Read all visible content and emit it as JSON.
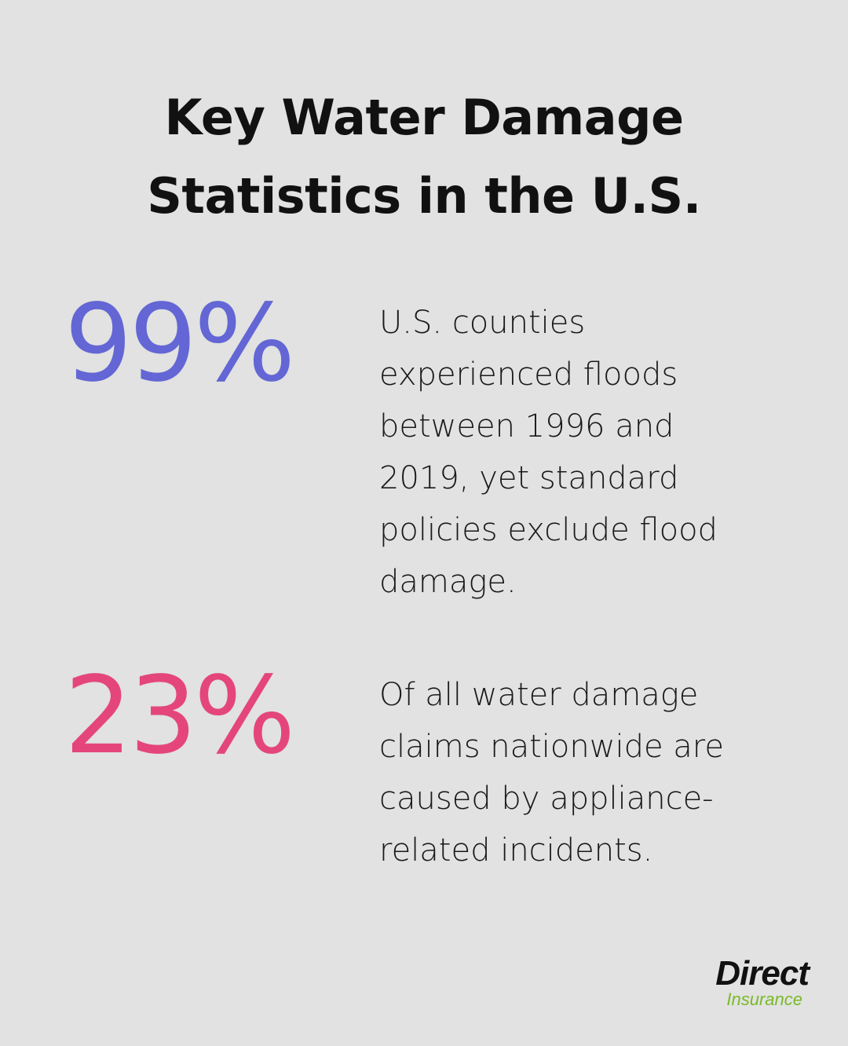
{
  "header": {
    "title": "Key Water Damage Statistics in the U.S."
  },
  "stats": [
    {
      "value": "99%",
      "text": "U.S. counties experienced floods between 1996 and 2019, yet standard policies exclude flood damage.",
      "color": "#6366d4"
    },
    {
      "value": "23%",
      "text": "Of all water damage claims nationwide are caused by appliance-related incidents.",
      "color": "#e4467b"
    }
  ],
  "logo": {
    "brand": "Direct",
    "sub": "Insurance"
  }
}
